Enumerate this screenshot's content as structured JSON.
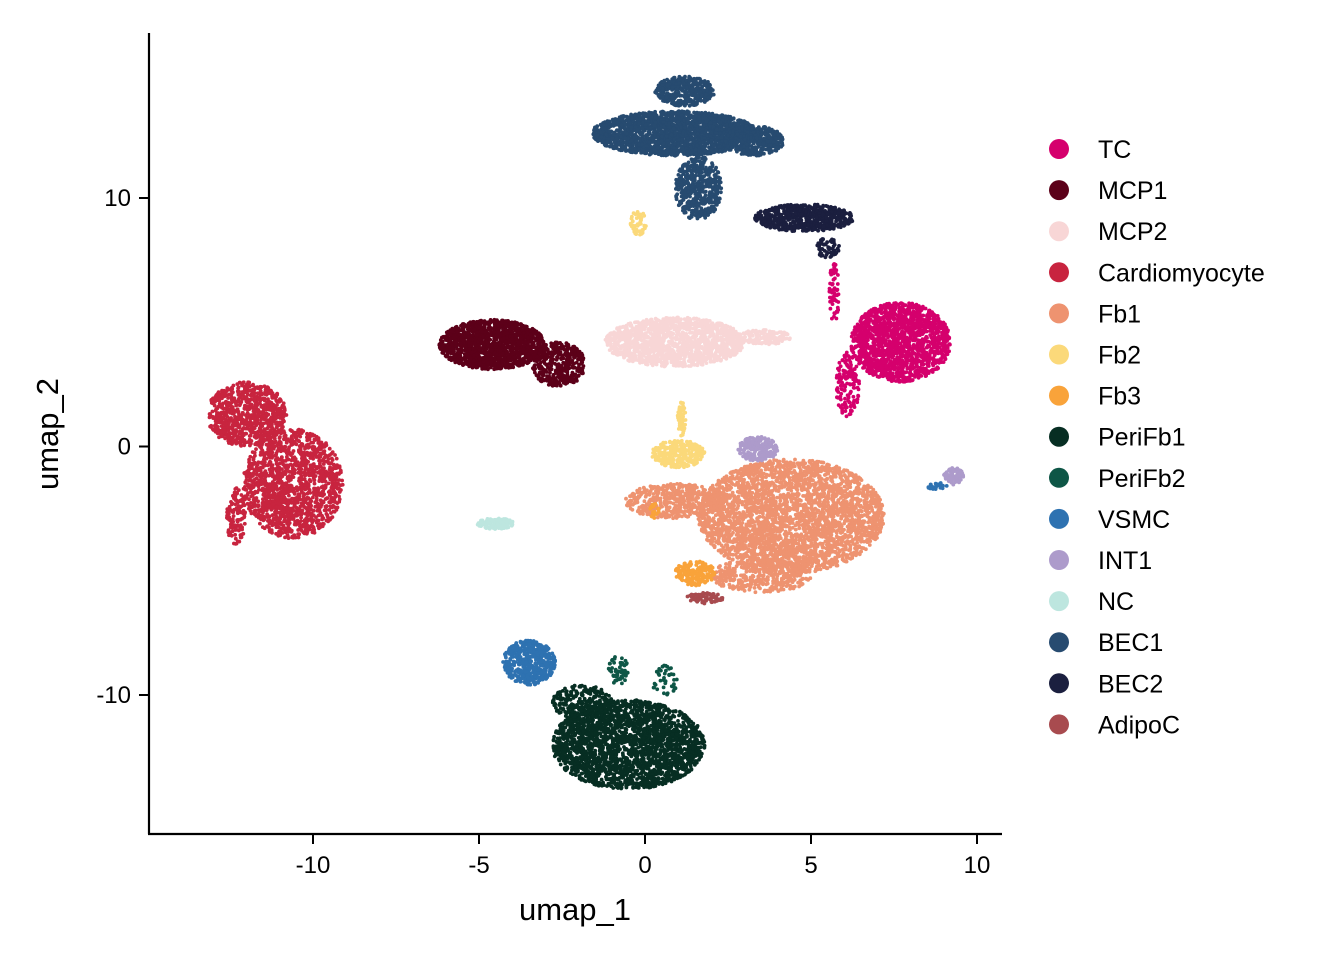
{
  "chart_data": {
    "type": "scatter",
    "title": "",
    "xlabel": "umap_1",
    "ylabel": "umap_2",
    "xlim": [
      -15,
      10.8
    ],
    "ylim": [
      -15.5,
      16.7
    ],
    "xticks": [
      -10,
      -5,
      0,
      5,
      10
    ],
    "xtick_labels": [
      "-10",
      "-5",
      "0",
      "5",
      "10"
    ],
    "yticks": [
      -10,
      0,
      10
    ],
    "ytick_labels": [
      "-10",
      "0",
      "10"
    ],
    "grid": false,
    "legend_position": "right",
    "series": [
      {
        "name": "TC",
        "color": "#D5006D",
        "clusters": [
          {
            "cx": 7.7,
            "cy": 4.2,
            "rx": 1.5,
            "ry": 1.6,
            "n": 1600
          },
          {
            "cx": 6.1,
            "cy": 2.5,
            "rx": 0.35,
            "ry": 1.3,
            "n": 150
          },
          {
            "cx": 5.7,
            "cy": 6.2,
            "rx": 0.15,
            "ry": 1.2,
            "n": 60
          }
        ]
      },
      {
        "name": "MCP1",
        "color": "#5C0019",
        "clusters": [
          {
            "cx": -4.6,
            "cy": 4.1,
            "rx": 1.6,
            "ry": 1.0,
            "n": 1500
          },
          {
            "cx": -2.6,
            "cy": 3.3,
            "rx": 0.8,
            "ry": 0.9,
            "n": 400
          }
        ]
      },
      {
        "name": "MCP2",
        "color": "#F8D6D6",
        "clusters": [
          {
            "cx": 0.9,
            "cy": 4.2,
            "rx": 2.1,
            "ry": 1.0,
            "n": 1500
          },
          {
            "cx": 3.6,
            "cy": 4.4,
            "rx": 0.8,
            "ry": 0.3,
            "n": 150
          }
        ]
      },
      {
        "name": "Cardiomyocyte",
        "color": "#C8243F",
        "clusters": [
          {
            "cx": -12.0,
            "cy": 1.3,
            "rx": 1.2,
            "ry": 1.3,
            "n": 800
          },
          {
            "cx": -10.6,
            "cy": -1.5,
            "rx": 1.5,
            "ry": 2.2,
            "n": 1400
          },
          {
            "cx": -12.3,
            "cy": -2.8,
            "rx": 0.3,
            "ry": 1.2,
            "n": 120
          }
        ]
      },
      {
        "name": "Fb1",
        "color": "#EE9370",
        "clusters": [
          {
            "cx": 4.4,
            "cy": -2.8,
            "rx": 2.8,
            "ry": 2.3,
            "n": 3200
          },
          {
            "cx": 0.9,
            "cy": -2.2,
            "rx": 1.5,
            "ry": 0.7,
            "n": 500
          },
          {
            "cx": 3.5,
            "cy": -5.2,
            "rx": 1.5,
            "ry": 0.7,
            "n": 400
          }
        ]
      },
      {
        "name": "Fb2",
        "color": "#FBD97A",
        "clusters": [
          {
            "cx": 1.0,
            "cy": -0.3,
            "rx": 0.8,
            "ry": 0.55,
            "n": 300
          },
          {
            "cx": 1.1,
            "cy": 1.1,
            "rx": 0.12,
            "ry": 0.7,
            "n": 60
          },
          {
            "cx": -0.2,
            "cy": 9.0,
            "rx": 0.25,
            "ry": 0.5,
            "n": 50
          }
        ]
      },
      {
        "name": "Fb3",
        "color": "#F9A33A",
        "clusters": [
          {
            "cx": 1.5,
            "cy": -5.1,
            "rx": 0.6,
            "ry": 0.5,
            "n": 180
          },
          {
            "cx": 0.3,
            "cy": -2.6,
            "rx": 0.15,
            "ry": 0.3,
            "n": 20
          }
        ]
      },
      {
        "name": "PeriFb1",
        "color": "#072E23",
        "clusters": [
          {
            "cx": -0.5,
            "cy": -12.0,
            "rx": 2.3,
            "ry": 1.8,
            "n": 2400
          },
          {
            "cx": -1.9,
            "cy": -10.3,
            "rx": 0.9,
            "ry": 0.7,
            "n": 250
          }
        ]
      },
      {
        "name": "PeriFb2",
        "color": "#0E5646",
        "clusters": [
          {
            "cx": -0.8,
            "cy": -9.0,
            "rx": 0.3,
            "ry": 0.6,
            "n": 60
          },
          {
            "cx": 0.6,
            "cy": -9.4,
            "rx": 0.4,
            "ry": 0.6,
            "n": 40
          }
        ]
      },
      {
        "name": "VSMC",
        "color": "#2E72B1",
        "clusters": [
          {
            "cx": -3.5,
            "cy": -8.7,
            "rx": 0.8,
            "ry": 0.9,
            "n": 500
          },
          {
            "cx": 8.8,
            "cy": -1.6,
            "rx": 0.3,
            "ry": 0.15,
            "n": 30
          }
        ]
      },
      {
        "name": "INT1",
        "color": "#AD9BCB",
        "clusters": [
          {
            "cx": 3.4,
            "cy": -0.1,
            "rx": 0.6,
            "ry": 0.5,
            "n": 220
          },
          {
            "cx": 9.3,
            "cy": -1.2,
            "rx": 0.3,
            "ry": 0.35,
            "n": 80
          }
        ]
      },
      {
        "name": "NC",
        "color": "#BDE6DF",
        "clusters": [
          {
            "cx": -4.5,
            "cy": -3.1,
            "rx": 0.55,
            "ry": 0.22,
            "n": 140
          }
        ]
      },
      {
        "name": "BEC1",
        "color": "#274B70",
        "clusters": [
          {
            "cx": 0.9,
            "cy": 12.6,
            "rx": 2.5,
            "ry": 0.9,
            "n": 2200
          },
          {
            "cx": 1.2,
            "cy": 14.3,
            "rx": 0.9,
            "ry": 0.6,
            "n": 400
          },
          {
            "cx": 1.6,
            "cy": 10.4,
            "rx": 0.7,
            "ry": 1.3,
            "n": 500
          },
          {
            "cx": 3.3,
            "cy": 12.3,
            "rx": 0.9,
            "ry": 0.6,
            "n": 350
          }
        ]
      },
      {
        "name": "BEC2",
        "color": "#1B1F3F",
        "clusters": [
          {
            "cx": 4.8,
            "cy": 9.2,
            "rx": 1.5,
            "ry": 0.55,
            "n": 650
          },
          {
            "cx": 5.5,
            "cy": 8.0,
            "rx": 0.35,
            "ry": 0.4,
            "n": 60
          }
        ]
      },
      {
        "name": "AdipoC",
        "color": "#A84B4F",
        "clusters": [
          {
            "cx": 1.8,
            "cy": -6.1,
            "rx": 0.55,
            "ry": 0.22,
            "n": 80
          }
        ]
      }
    ]
  }
}
